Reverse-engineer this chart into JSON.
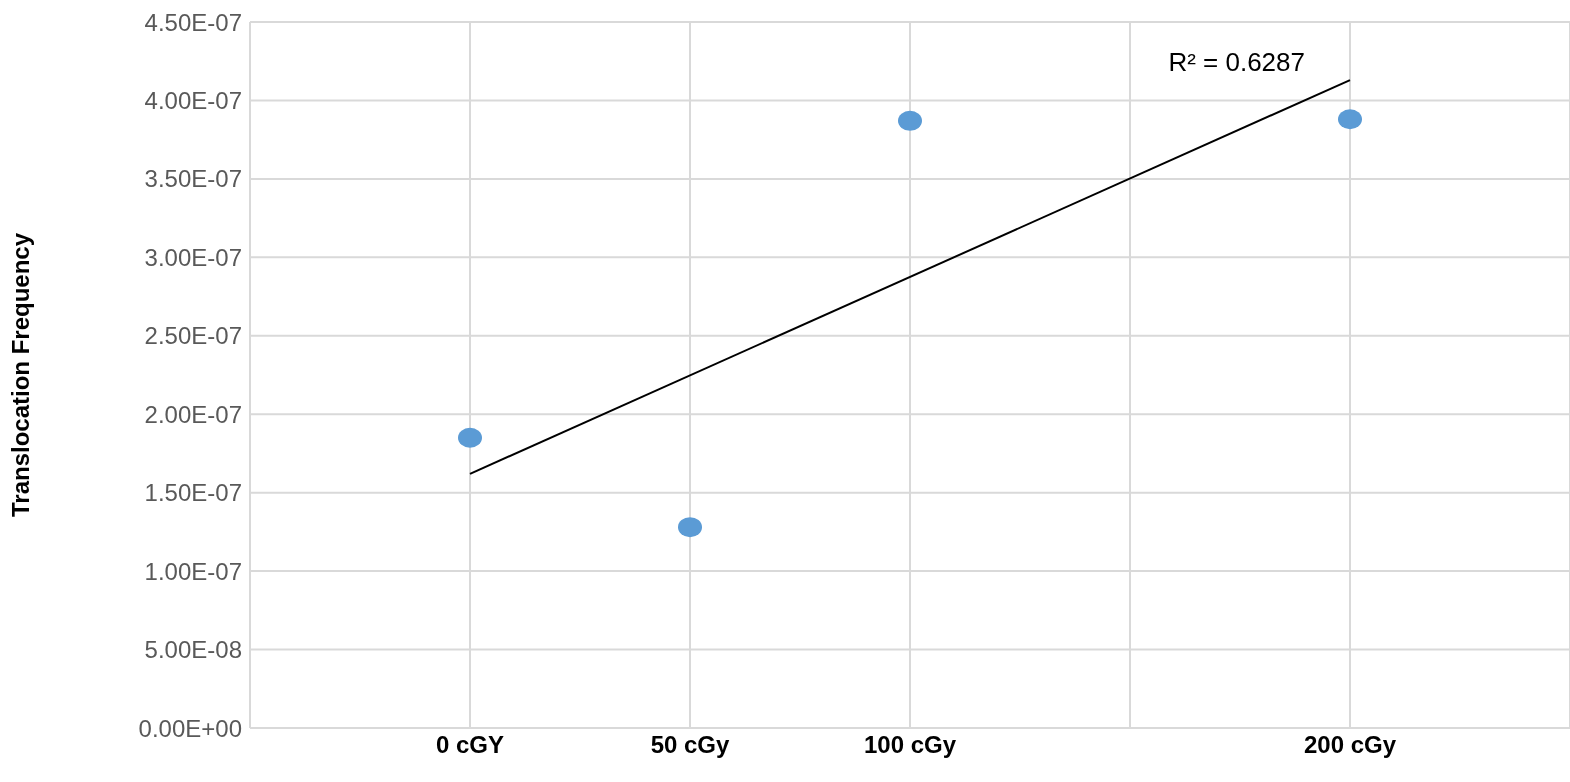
{
  "chart_data": {
    "type": "scatter",
    "ylabel": "Translocation Frequency",
    "xlim": [
      -50,
      250
    ],
    "xticks": [
      {
        "value": -50,
        "label": null
      },
      {
        "value": 0,
        "label": "0 cGY"
      },
      {
        "value": 50,
        "label": "50 cGy"
      },
      {
        "value": 100,
        "label": "100 cGy"
      },
      {
        "value": 150,
        "label": null
      },
      {
        "value": 200,
        "label": "200 cGy"
      },
      {
        "value": 250,
        "label": null
      }
    ],
    "ylim": [
      0,
      4.5e-07
    ],
    "yticks": [
      {
        "value": 0,
        "label": "0.00E+00"
      },
      {
        "value": 5e-08,
        "label": "5.00E-08"
      },
      {
        "value": 1e-07,
        "label": "1.00E-07"
      },
      {
        "value": 1.5e-07,
        "label": "1.50E-07"
      },
      {
        "value": 2e-07,
        "label": "2.00E-07"
      },
      {
        "value": 2.5e-07,
        "label": "2.50E-07"
      },
      {
        "value": 3e-07,
        "label": "3.00E-07"
      },
      {
        "value": 3.5e-07,
        "label": "3.50E-07"
      },
      {
        "value": 4e-07,
        "label": "4.00E-07"
      },
      {
        "value": 4.5e-07,
        "label": "4.50E-07"
      }
    ],
    "grid": true,
    "series": [
      {
        "color": "#5b9bd5",
        "marker": "circle",
        "x": [
          0,
          50,
          100,
          200
        ],
        "values": [
          1.85e-07,
          1.28e-07,
          3.87e-07,
          3.88e-07
        ]
      },
      {
        "type": "line",
        "color": "#000000",
        "marker": "none",
        "line_style": "solid",
        "x": [
          0,
          200
        ],
        "values": [
          1.62e-07,
          4.13e-07
        ]
      }
    ],
    "annotations": [
      "R² = 0.6287"
    ]
  }
}
